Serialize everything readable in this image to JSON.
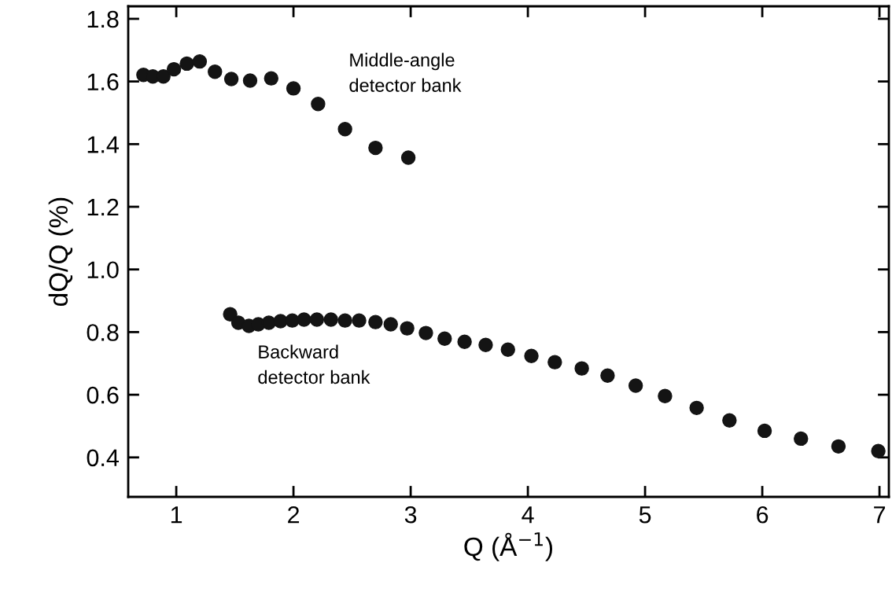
{
  "chart_data": {
    "type": "scatter",
    "xlabel": "Q (Å$^{−1}$)",
    "ylabel": "dQ/Q (%)",
    "xlim": [
      0.59,
      7.08
    ],
    "ylim": [
      0.274,
      1.84
    ],
    "xticks": [
      1,
      2,
      3,
      4,
      5,
      6,
      7
    ],
    "yticks": [
      {
        "value": 0.4,
        "label": "0.4"
      },
      {
        "value": 0.6,
        "label": "0.6"
      },
      {
        "value": 0.8,
        "label": "0.8"
      },
      {
        "value": 1.0,
        "label": "1.0"
      },
      {
        "value": 1.2,
        "label": "1.2"
      },
      {
        "value": 1.4,
        "label": "1.4"
      },
      {
        "value": 1.6,
        "label": "1.6"
      },
      {
        "value": 1.8,
        "label": "1.8"
      }
    ],
    "marker": "circle",
    "grid": false,
    "legend": false,
    "series": [
      {
        "color": "#141414",
        "x": [
          0.72,
          0.8,
          0.89,
          0.98,
          1.09,
          1.2,
          1.33,
          1.47,
          1.63,
          1.81,
          2.0,
          2.21,
          2.44,
          2.7,
          2.98
        ],
        "values": [
          1.621,
          1.616,
          1.616,
          1.639,
          1.657,
          1.664,
          1.631,
          1.608,
          1.603,
          1.61,
          1.578,
          1.528,
          1.448,
          1.388,
          1.357
        ]
      },
      {
        "color": "#141414",
        "x": [
          1.46,
          1.53,
          1.62,
          1.7,
          1.79,
          1.89,
          1.99,
          2.09,
          2.2,
          2.32,
          2.44,
          2.56,
          2.7,
          2.83,
          2.97,
          3.13,
          3.29,
          3.46,
          3.64,
          3.83,
          4.03,
          4.23,
          4.46,
          4.68,
          4.92,
          5.17,
          5.44,
          5.72,
          6.02,
          6.33,
          6.65,
          6.99
        ],
        "values": [
          0.857,
          0.83,
          0.82,
          0.825,
          0.83,
          0.835,
          0.837,
          0.84,
          0.84,
          0.84,
          0.837,
          0.837,
          0.832,
          0.825,
          0.812,
          0.797,
          0.779,
          0.769,
          0.759,
          0.744,
          0.724,
          0.704,
          0.684,
          0.661,
          0.629,
          0.596,
          0.558,
          0.518,
          0.485,
          0.46,
          0.435,
          0.42
        ]
      }
    ],
    "annotations": [
      "Middle-angle\ndetector bank",
      "Backward\ndetector bank"
    ]
  }
}
